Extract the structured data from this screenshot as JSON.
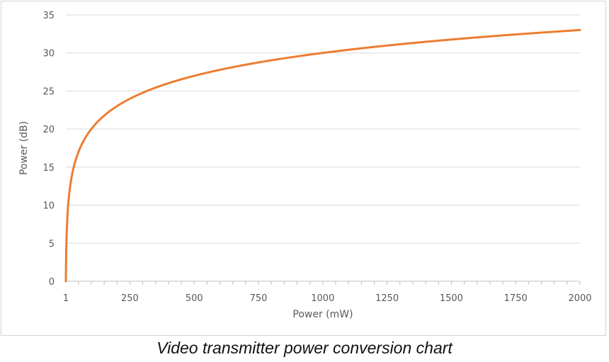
{
  "caption": "Video transmitter power conversion chart",
  "colors": {
    "series": "#ed7d31",
    "grid": "#d9d9d9",
    "axis": "#bfbfbf",
    "text": "#595959"
  },
  "chart_data": {
    "type": "line",
    "title": "",
    "xlabel": "Power (mW)",
    "ylabel": "Power (dB)",
    "xlim": [
      1,
      2000
    ],
    "ylim": [
      0,
      35
    ],
    "x_ticks": [
      1,
      250,
      500,
      750,
      1000,
      1250,
      1500,
      1750,
      2000
    ],
    "x_tick_labels": [
      "1",
      "250",
      "500",
      "750",
      "1000",
      "1250",
      "1500",
      "1750",
      "2000"
    ],
    "y_ticks": [
      0,
      5,
      10,
      15,
      20,
      25,
      30,
      35
    ],
    "y_tick_labels": [
      "0",
      "5",
      "10",
      "15",
      "20",
      "25",
      "30",
      "35"
    ],
    "grid": true,
    "legend": "none",
    "series": [
      {
        "color": "#ed7d31",
        "x": [
          1,
          2,
          3,
          5,
          7,
          10,
          15,
          20,
          30,
          40,
          50,
          75,
          100,
          150,
          200,
          250,
          300,
          400,
          500,
          600,
          700,
          800,
          900,
          1000,
          1100,
          1200,
          1300,
          1400,
          1500,
          1600,
          1700,
          1800,
          1900,
          2000
        ],
        "y": [
          0,
          3.01,
          4.77,
          6.99,
          8.45,
          10,
          11.76,
          13.01,
          14.77,
          16.02,
          16.99,
          18.75,
          20,
          21.76,
          23.01,
          23.98,
          24.77,
          26.02,
          26.99,
          27.78,
          28.45,
          29.03,
          29.54,
          30,
          30.41,
          30.79,
          31.14,
          31.46,
          31.76,
          32.04,
          32.3,
          32.55,
          32.79,
          33.01
        ]
      }
    ]
  }
}
